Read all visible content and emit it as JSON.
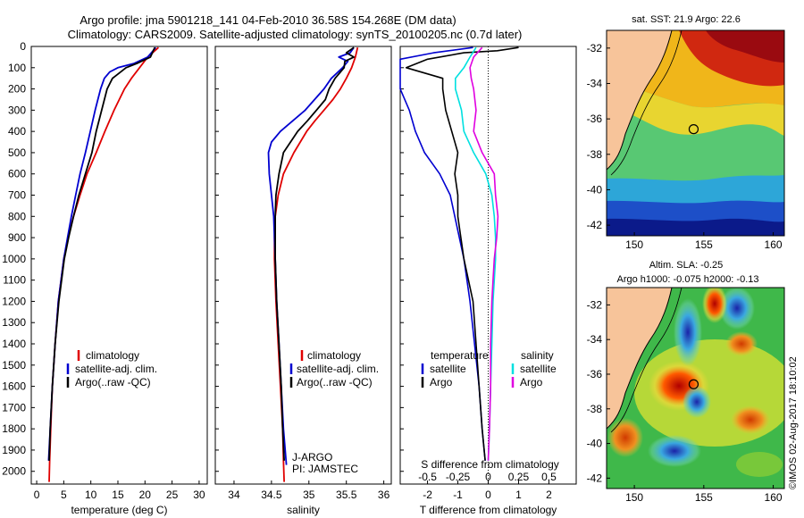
{
  "header": {
    "line1": "Argo profile: jma 5901218_141 04-Feb-2010 36.58S 154.268E (DM data)",
    "line2": "Climatology: CARS2009. Satellite-adjusted climatology: synTS_20100205.nc (0.7d later)"
  },
  "colors": {
    "climatology": "#e00000",
    "satellite": "#0000d0",
    "argo": "#000000",
    "sal_satellite": "#00e0e0",
    "sal_argo": "#e000e0",
    "land": "#f7c49a"
  },
  "depth_axis": {
    "ticks": [
      0,
      100,
      200,
      300,
      400,
      500,
      600,
      700,
      800,
      900,
      1000,
      1100,
      1200,
      1300,
      1400,
      1500,
      1600,
      1700,
      1800,
      1900,
      2000
    ],
    "labels": [
      "0",
      "100",
      "200",
      "300",
      "400",
      "500",
      "600",
      "700",
      "800",
      "900",
      "1000",
      "1100",
      "1200",
      "1300",
      "1400",
      "1500",
      "1600",
      "1700",
      "1800",
      "1900",
      "2000"
    ],
    "ylim": [
      0,
      2060
    ]
  },
  "legend": {
    "climatology": "climatology",
    "satellite": "satellite-adj. clim.",
    "argo": "Argo(..raw -QC)"
  },
  "chart_data": [
    {
      "type": "line",
      "name": "temperature",
      "xlabel": "temperature (deg C)",
      "xlim": [
        -1,
        31.5
      ],
      "xticks": [
        0,
        5,
        10,
        15,
        20,
        25,
        30
      ],
      "xtick_labels": [
        "0",
        "5",
        "10",
        "15",
        "20",
        "25",
        "30"
      ],
      "series": [
        {
          "name": "climatology",
          "depth": [
            5,
            50,
            100,
            150,
            200,
            300,
            400,
            500,
            600,
            700,
            800,
            900,
            1000,
            1200,
            1400,
            1600,
            1800,
            1950,
            2050
          ],
          "values": [
            22.5,
            20.5,
            19,
            17.5,
            16.2,
            14.3,
            12.6,
            11,
            9.3,
            8,
            6.8,
            5.8,
            5,
            4,
            3.4,
            2.9,
            2.6,
            2.4,
            2.3
          ]
        },
        {
          "name": "satellite-adj. clim.",
          "depth": [
            5,
            50,
            80,
            100,
            120,
            150,
            200,
            300,
            400,
            500,
            600,
            700,
            800,
            900,
            1000,
            1200,
            1400,
            1600,
            1800,
            1950
          ],
          "values": [
            22,
            20.5,
            18,
            15,
            13.5,
            12.5,
            11.8,
            10.8,
            9.9,
            9,
            8,
            7.2,
            6.4,
            5.7,
            5,
            4,
            3.4,
            2.9,
            2.5,
            2.2
          ]
        },
        {
          "name": "Argo(..raw -QC)",
          "depth": [
            5,
            50,
            80,
            100,
            150,
            200,
            300,
            400,
            500,
            600,
            700,
            800,
            900,
            1000,
            1200,
            1400,
            1600,
            1800,
            1950
          ],
          "values": [
            21.8,
            21,
            18.5,
            16.5,
            14,
            13,
            12,
            11,
            10.2,
            9,
            7.8,
            6.8,
            5.9,
            5.1,
            4.1,
            3.4,
            2.9,
            2.5,
            2.3
          ]
        }
      ],
      "legend": [
        "climatology",
        "satellite-adj. clim.",
        "Argo(..raw -QC)"
      ]
    },
    {
      "type": "line",
      "name": "salinity",
      "xlabel": "salinity",
      "xlim": [
        33.75,
        36.1
      ],
      "xticks": [
        34,
        34.5,
        35,
        35.5,
        36
      ],
      "xtick_labels": [
        "34",
        "34.5",
        "35",
        "35.5",
        "36"
      ],
      "series": [
        {
          "name": "climatology",
          "depth": [
            5,
            50,
            100,
            150,
            200,
            250,
            300,
            350,
            400,
            500,
            600,
            700,
            800,
            900,
            1000,
            1200,
            1400,
            1600,
            1800,
            1950,
            2050
          ],
          "values": [
            35.65,
            35.62,
            35.57,
            35.5,
            35.42,
            35.32,
            35.2,
            35.08,
            34.97,
            34.8,
            34.66,
            34.59,
            34.55,
            34.54,
            34.54,
            34.56,
            34.59,
            34.62,
            34.65,
            34.66,
            34.67
          ]
        },
        {
          "name": "satellite-adj. clim.",
          "depth": [
            5,
            30,
            50,
            70,
            100,
            150,
            200,
            300,
            400,
            450,
            500,
            600,
            700,
            800,
            900,
            1000,
            1200,
            1400,
            1600,
            1800,
            1970
          ],
          "values": [
            35.6,
            35.55,
            35.4,
            35.52,
            35.45,
            35.3,
            35.2,
            34.95,
            34.62,
            34.5,
            34.46,
            34.47,
            34.5,
            34.53,
            34.54,
            34.55,
            34.57,
            34.6,
            34.63,
            34.66,
            34.7
          ]
        },
        {
          "name": "Argo(..raw -QC)",
          "depth": [
            5,
            30,
            50,
            70,
            100,
            150,
            200,
            250,
            300,
            350,
            400,
            500,
            600,
            700,
            800,
            900,
            1000,
            1200,
            1400,
            1600,
            1800,
            1950
          ],
          "values": [
            35.6,
            35.5,
            35.6,
            35.48,
            35.47,
            35.35,
            35.27,
            35.22,
            35.1,
            34.98,
            34.85,
            34.66,
            34.6,
            34.56,
            34.55,
            34.55,
            34.55,
            34.57,
            34.6,
            34.63,
            34.65,
            34.67
          ]
        }
      ],
      "annotation_lines": [
        "J-ARGO",
        "PI: JAMSTEC"
      ]
    },
    {
      "type": "line",
      "name": "differences from climatology",
      "xlabel": "T difference from climatology",
      "xlabel_top": "S difference from climatology",
      "xlim": [
        -2.9,
        2.9
      ],
      "xticks": [
        -2,
        -1,
        0,
        1,
        2
      ],
      "xtick_labels": [
        "-2",
        "-1",
        "0",
        "1",
        "2"
      ],
      "s_xticks": [
        -0.5,
        -0.25,
        0,
        0.25,
        0.5
      ],
      "s_xtick_labels": [
        "-0.5",
        "-0.25",
        "0",
        "0.25",
        "0.5"
      ],
      "series": [
        {
          "name": "temperature satellite",
          "depth": [
            5,
            30,
            60,
            100,
            150,
            200,
            300,
            400,
            500,
            600,
            700,
            800,
            900,
            1000,
            1200,
            1400,
            1600,
            1800,
            1950
          ],
          "values": [
            -0.5,
            -1.8,
            -2.9,
            -2.9,
            -2.9,
            -2.9,
            -2.6,
            -2.4,
            -2.1,
            -1.6,
            -1.25,
            -1.1,
            -0.95,
            -0.8,
            -0.6,
            -0.45,
            -0.3,
            -0.2,
            -0.1
          ]
        },
        {
          "name": "temperature Argo",
          "depth": [
            5,
            20,
            30,
            60,
            100,
            150,
            200,
            300,
            400,
            500,
            600,
            700,
            800,
            900,
            1000,
            1200,
            1400,
            1600,
            1800,
            1950
          ],
          "values": [
            1.0,
            0.3,
            -0.8,
            -2.0,
            -2.7,
            -1.5,
            -1.5,
            -1.4,
            -1.2,
            -1.0,
            -1.1,
            -1.0,
            -1.0,
            -0.9,
            -0.8,
            -0.5,
            -0.4,
            -0.3,
            -0.2,
            -0.1
          ]
        },
        {
          "name": "salinity satellite",
          "depth": [
            5,
            50,
            100,
            150,
            200,
            300,
            400,
            500,
            600,
            700,
            800,
            900,
            1000,
            1100,
            1200,
            1400,
            1600,
            1800,
            1950
          ],
          "values": [
            -0.1,
            -0.15,
            -0.2,
            -0.27,
            -0.27,
            -0.22,
            -0.2,
            -0.12,
            -0.02,
            0.03,
            0.05,
            0.06,
            0.06,
            0.05,
            0.04,
            0.03,
            0.02,
            0.01,
            0.0
          ]
        },
        {
          "name": "salinity Argo",
          "depth": [
            5,
            50,
            100,
            150,
            200,
            300,
            400,
            500,
            600,
            700,
            800,
            900,
            1000,
            1100,
            1200,
            1400,
            1600,
            1800,
            1950
          ],
          "values": [
            -0.05,
            -0.12,
            -0.15,
            -0.14,
            -0.12,
            -0.1,
            -0.12,
            -0.05,
            0.05,
            0.06,
            0.08,
            0.07,
            0.05,
            0.04,
            0.03,
            0.02,
            0.02,
            0.01,
            0.0
          ]
        }
      ],
      "legend": {
        "temperature": "temperature",
        "salinity": "salinity",
        "satellite": "satellite",
        "argo": "Argo"
      }
    }
  ],
  "maps": {
    "sst_title": "sat. SST: 21.9 Argo: 22.6",
    "sla_title1": "Altim. SLA: -0.25",
    "sla_title2": "Argo h1000: -0.075 h2000: -0.13",
    "lat_ticks": [
      -32,
      -34,
      -36,
      -38,
      -40,
      -42
    ],
    "lat_labels": [
      "-32",
      "-34",
      "-36",
      "-38",
      "-40",
      "-42"
    ],
    "lon_ticks": [
      150,
      155,
      160
    ],
    "lon_labels": [
      "150",
      "155",
      "160"
    ],
    "lon_range": [
      148,
      160.8
    ],
    "lat_range": [
      -31,
      -42.6
    ],
    "float_position": {
      "lon": 154.268,
      "lat": -36.58
    }
  },
  "footer": {
    "credit": "©IMOS 02-Aug-2017 18:10:02"
  }
}
